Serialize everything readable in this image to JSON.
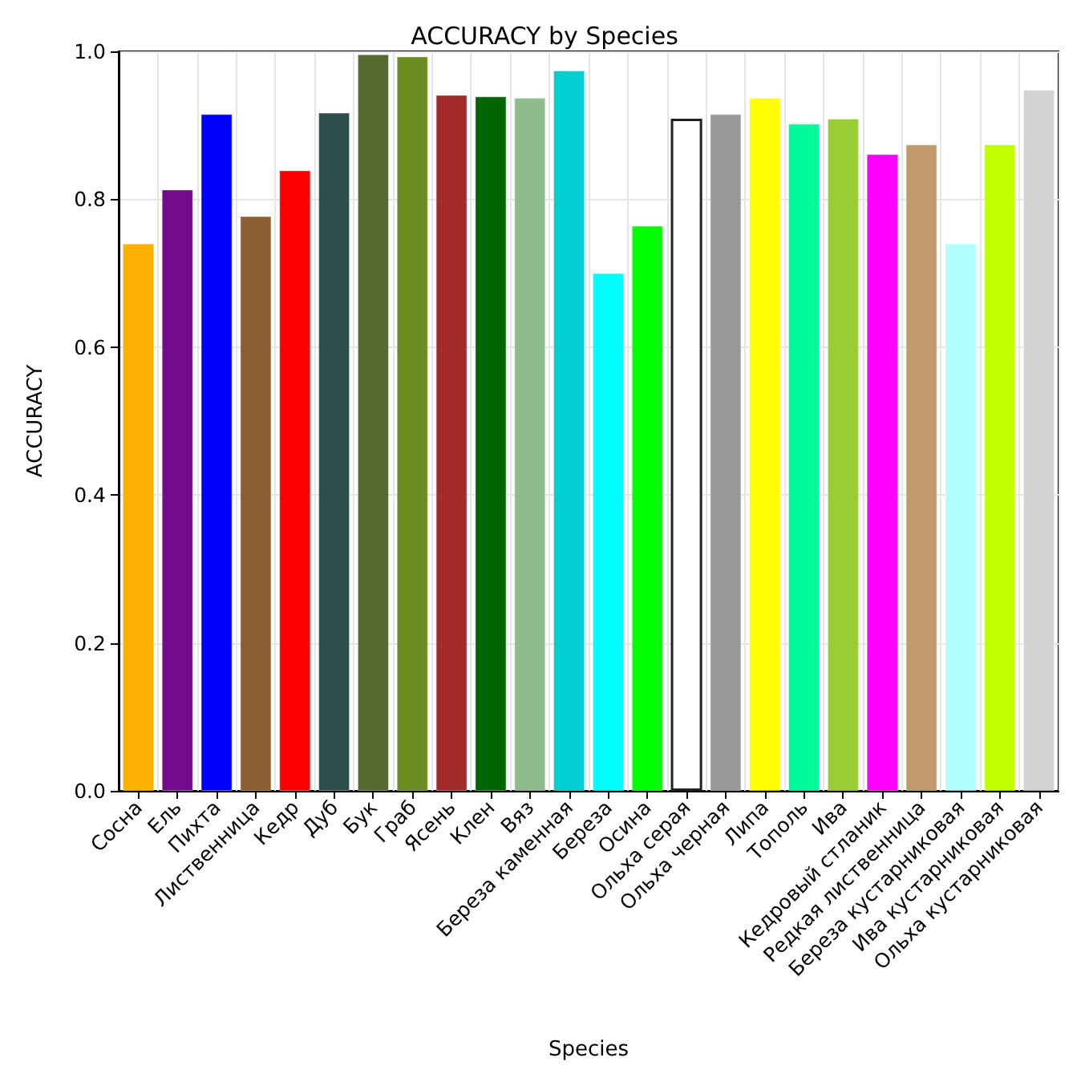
{
  "chart_data": {
    "type": "bar",
    "title": "ACCURACY by Species",
    "xlabel": "Species",
    "ylabel": "ACCURACY",
    "categories": [
      "Сосна",
      "Ель",
      "Пихта",
      "Лиственница",
      "Кедр",
      "Дуб",
      "Бук",
      "Граб",
      "Ясень",
      "Клен",
      "Вяз",
      "Береза каменная",
      "Береза",
      "Осина",
      "Ольха серая",
      "Ольха черная",
      "Липа",
      "Тополь",
      "Ива",
      "Кедровый стланик",
      "Редкая лиственница",
      "Береза кустарниковая",
      "Ива кустарниковая",
      "Ольха кустарниковая"
    ],
    "values": [
      0.74,
      0.813,
      0.915,
      0.777,
      0.839,
      0.917,
      0.996,
      0.993,
      0.941,
      0.939,
      0.937,
      0.974,
      0.7,
      0.764,
      0.909,
      0.915,
      0.937,
      0.902,
      0.909,
      0.861,
      0.874,
      0.74,
      0.874,
      0.948
    ],
    "colors": [
      "#ffb000",
      "#730b8c",
      "#0000ff",
      "#8b5e34",
      "#ff0000",
      "#2f4f4f",
      "#556b2f",
      "#6b8e23",
      "#a52a2a",
      "#006400",
      "#8fbc8f",
      "#00ced1",
      "#00ffff",
      "#00ff00",
      "#ffffff",
      "#999999",
      "#ffff00",
      "#00fa9a",
      "#9acd32",
      "#ff00ff",
      "#c19a6b",
      "#b0ffff",
      "#bfff00",
      "#d3d3d3"
    ],
    "ylim": [
      0,
      1
    ],
    "yticks": [
      {
        "value": 0,
        "label": "0.0"
      },
      {
        "value": 0.2,
        "label": "0.2"
      },
      {
        "value": 0.4,
        "label": "0.4"
      },
      {
        "value": 0.6,
        "label": "0.6"
      },
      {
        "value": 0.8,
        "label": "0.8"
      },
      {
        "value": 1,
        "label": "1.0"
      }
    ],
    "grid": true
  }
}
